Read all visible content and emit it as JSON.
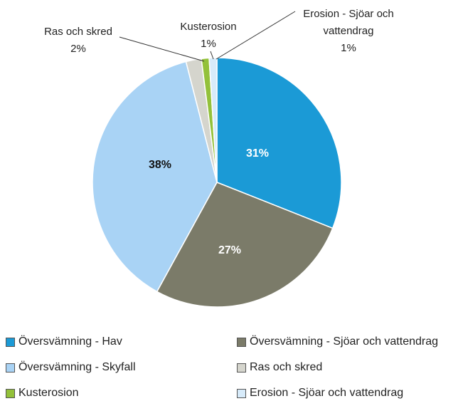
{
  "chart_data": {
    "type": "pie",
    "categories": [
      "Översvämning - Hav",
      "Översvämning - Sjöar och vattendrag",
      "Översvämning - Skyfall",
      "Ras och skred",
      "Kusterosion",
      "Erosion - Sjöar och vattendrag"
    ],
    "values": [
      31,
      27,
      38,
      2,
      1,
      1
    ],
    "value_labels": [
      "31%",
      "27%",
      "38%",
      "2%",
      "1%",
      "1%"
    ],
    "colors": [
      "#1b9ad6",
      "#7b7b69",
      "#a9d3f5",
      "#d5d5cd",
      "#93c13a",
      "#d7ebfa"
    ],
    "legend": "bottom"
  }
}
